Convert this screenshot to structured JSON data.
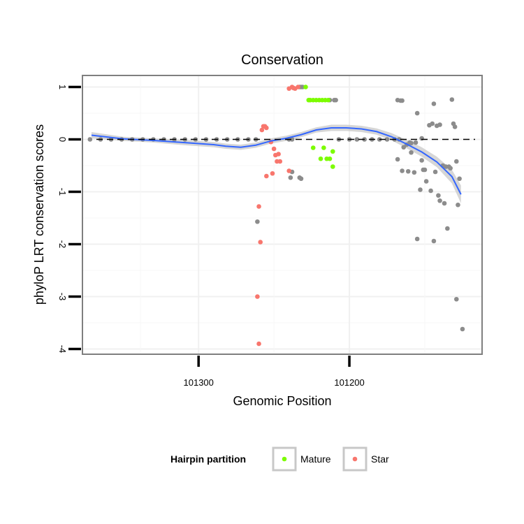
{
  "chart_data": {
    "type": "scatter",
    "title": "Conservation",
    "xlabel": "Genomic Position",
    "ylabel": "phyloP LRT conservation scores",
    "x_reversed": true,
    "xlim": [
      101377,
      101112
    ],
    "ylim": [
      -4.1,
      1.22
    ],
    "x_ticks": [
      101300,
      101200
    ],
    "x_tick_labels": [
      "101300",
      "101200"
    ],
    "y_ticks": [
      1,
      0,
      -1,
      -2,
      -3,
      -4
    ],
    "y_tick_labels": [
      "1",
      "0",
      "-1",
      "-2",
      "-3",
      "-4"
    ],
    "reference_line": {
      "y": 0,
      "style": "dashed",
      "color": "#000000"
    },
    "colors": {
      "Mature": "#7cfc00",
      "Star": "#f8766d",
      "other": "#8c8c8c",
      "smooth": "#3366ff",
      "ribbon": "#c8c8c8"
    },
    "series": [
      {
        "name": "other",
        "points": [
          [
            101372,
            0
          ],
          [
            101365,
            0
          ],
          [
            101358,
            0
          ],
          [
            101351,
            0
          ],
          [
            101344,
            0
          ],
          [
            101337,
            0
          ],
          [
            101330,
            0
          ],
          [
            101323,
            0
          ],
          [
            101316,
            0
          ],
          [
            101309,
            0
          ],
          [
            101302,
            0
          ],
          [
            101295,
            0
          ],
          [
            101288,
            0
          ],
          [
            101281,
            0
          ],
          [
            101274,
            0
          ],
          [
            101267,
            0
          ],
          [
            101262,
            0
          ],
          [
            101261,
            -1.57
          ],
          [
            101240,
            0.0
          ],
          [
            101238,
            0.0
          ],
          [
            101239,
            -0.73
          ],
          [
            101238,
            -0.62
          ],
          [
            101233,
            -0.73
          ],
          [
            101232,
            -0.75
          ],
          [
            101233,
            1.0
          ],
          [
            101232,
            1.0
          ],
          [
            101231,
            1.0
          ],
          [
            101213,
            0.75
          ],
          [
            101210,
            0.75
          ],
          [
            101209,
            0.75
          ],
          [
            101207,
            0
          ],
          [
            101200,
            0
          ],
          [
            101195,
            0
          ],
          [
            101190,
            0
          ],
          [
            101185,
            0
          ],
          [
            101180,
            0
          ],
          [
            101175,
            0
          ],
          [
            101170,
            0
          ],
          [
            101167,
            0
          ],
          [
            101168,
            0.75
          ],
          [
            101166,
            0.74
          ],
          [
            101165,
            0.74
          ],
          [
            101168,
            -0.38
          ],
          [
            101165,
            -0.6
          ],
          [
            101164,
            -0.15
          ],
          [
            101162,
            -0.1
          ],
          [
            101161,
            -0.61
          ],
          [
            101160,
            -0.06
          ],
          [
            101159,
            -0.25
          ],
          [
            101159,
            -0.07
          ],
          [
            101157,
            -0.63
          ],
          [
            101156,
            -0.06
          ],
          [
            101155,
            0.5
          ],
          [
            101155,
            -1.9
          ],
          [
            101153,
            -0.96
          ],
          [
            101152,
            -0.4
          ],
          [
            101152,
            0.02
          ],
          [
            101151,
            -0.58
          ],
          [
            101150,
            -0.58
          ],
          [
            101149,
            -0.8
          ],
          [
            101147,
            0.27
          ],
          [
            101146,
            -0.98
          ],
          [
            101145,
            0.3
          ],
          [
            101144,
            -1.94
          ],
          [
            101144,
            0.68
          ],
          [
            101143,
            -0.62
          ],
          [
            101142,
            0.26
          ],
          [
            101141,
            -1.07
          ],
          [
            101140,
            0.28
          ],
          [
            101140,
            -1.17
          ],
          [
            101138,
            -0.5
          ],
          [
            101137,
            -1.22
          ],
          [
            101136,
            -0.52
          ],
          [
            101135,
            -1.7
          ],
          [
            101134,
            -0.52
          ],
          [
            101133,
            -0.55
          ],
          [
            101132,
            0.76
          ],
          [
            101131,
            0.3
          ],
          [
            101130,
            0.24
          ],
          [
            101129,
            -0.42
          ],
          [
            101129,
            -3.05
          ],
          [
            101128,
            -1.25
          ],
          [
            101127,
            -0.75
          ],
          [
            101125,
            -3.62
          ]
        ]
      },
      {
        "name": "Mature",
        "points": [
          [
            101229,
            1.0
          ],
          [
            101226,
            0.75
          ],
          [
            101224,
            0.75
          ],
          [
            101222,
            0.75
          ],
          [
            101220,
            0.75
          ],
          [
            101218,
            0.75
          ],
          [
            101216,
            0.75
          ],
          [
            101214,
            0.75
          ],
          [
            101224,
            -0.16
          ],
          [
            101219,
            -0.37
          ],
          [
            101217,
            -0.16
          ],
          [
            101215,
            -0.37
          ],
          [
            101213,
            -0.37
          ],
          [
            101211,
            -0.52
          ],
          [
            101211,
            -0.23
          ],
          [
            101227,
            0.75
          ]
        ]
      },
      {
        "name": "Star",
        "points": [
          [
            101240,
            0.97
          ],
          [
            101238,
            1.0
          ],
          [
            101237,
            0.98
          ],
          [
            101236,
            0.97
          ],
          [
            101234,
            1.0
          ],
          [
            101258,
            0.18
          ],
          [
            101257,
            0.25
          ],
          [
            101256,
            0.25
          ],
          [
            101255,
            0.22
          ],
          [
            101252,
            -0.05
          ],
          [
            101250,
            -0.18
          ],
          [
            101249,
            -0.3
          ],
          [
            101248,
            -0.42
          ],
          [
            101246,
            -0.42
          ],
          [
            101247,
            -0.28
          ],
          [
            101255,
            -0.7
          ],
          [
            101251,
            -0.65
          ],
          [
            101240,
            -0.6
          ],
          [
            101260,
            -1.28
          ],
          [
            101259,
            -1.96
          ],
          [
            101261,
            -3.0
          ],
          [
            101260,
            -3.9
          ]
        ]
      }
    ],
    "smooth": {
      "points": [
        [
          101371,
          0.08
        ],
        [
          101350,
          0.01
        ],
        [
          101330,
          -0.02
        ],
        [
          101310,
          -0.06
        ],
        [
          101290,
          -0.1
        ],
        [
          101282,
          -0.13
        ],
        [
          101272,
          -0.15
        ],
        [
          101262,
          -0.11
        ],
        [
          101252,
          -0.03
        ],
        [
          101242,
          0.02
        ],
        [
          101232,
          0.09
        ],
        [
          101222,
          0.18
        ],
        [
          101212,
          0.22
        ],
        [
          101202,
          0.22
        ],
        [
          101192,
          0.2
        ],
        [
          101182,
          0.15
        ],
        [
          101172,
          0.05
        ],
        [
          101162,
          -0.09
        ],
        [
          101152,
          -0.24
        ],
        [
          101142,
          -0.43
        ],
        [
          101132,
          -0.71
        ],
        [
          101126,
          -1.05
        ]
      ],
      "ribbon_halfwidth": [
        0.06,
        0.04,
        0.04,
        0.05,
        0.05,
        0.05,
        0.05,
        0.05,
        0.05,
        0.05,
        0.05,
        0.05,
        0.06,
        0.06,
        0.06,
        0.06,
        0.07,
        0.08,
        0.09,
        0.1,
        0.13,
        0.17
      ]
    },
    "legend": {
      "title": "Hairpin partition",
      "position": "bottom",
      "entries": [
        "Mature",
        "Star"
      ]
    }
  }
}
